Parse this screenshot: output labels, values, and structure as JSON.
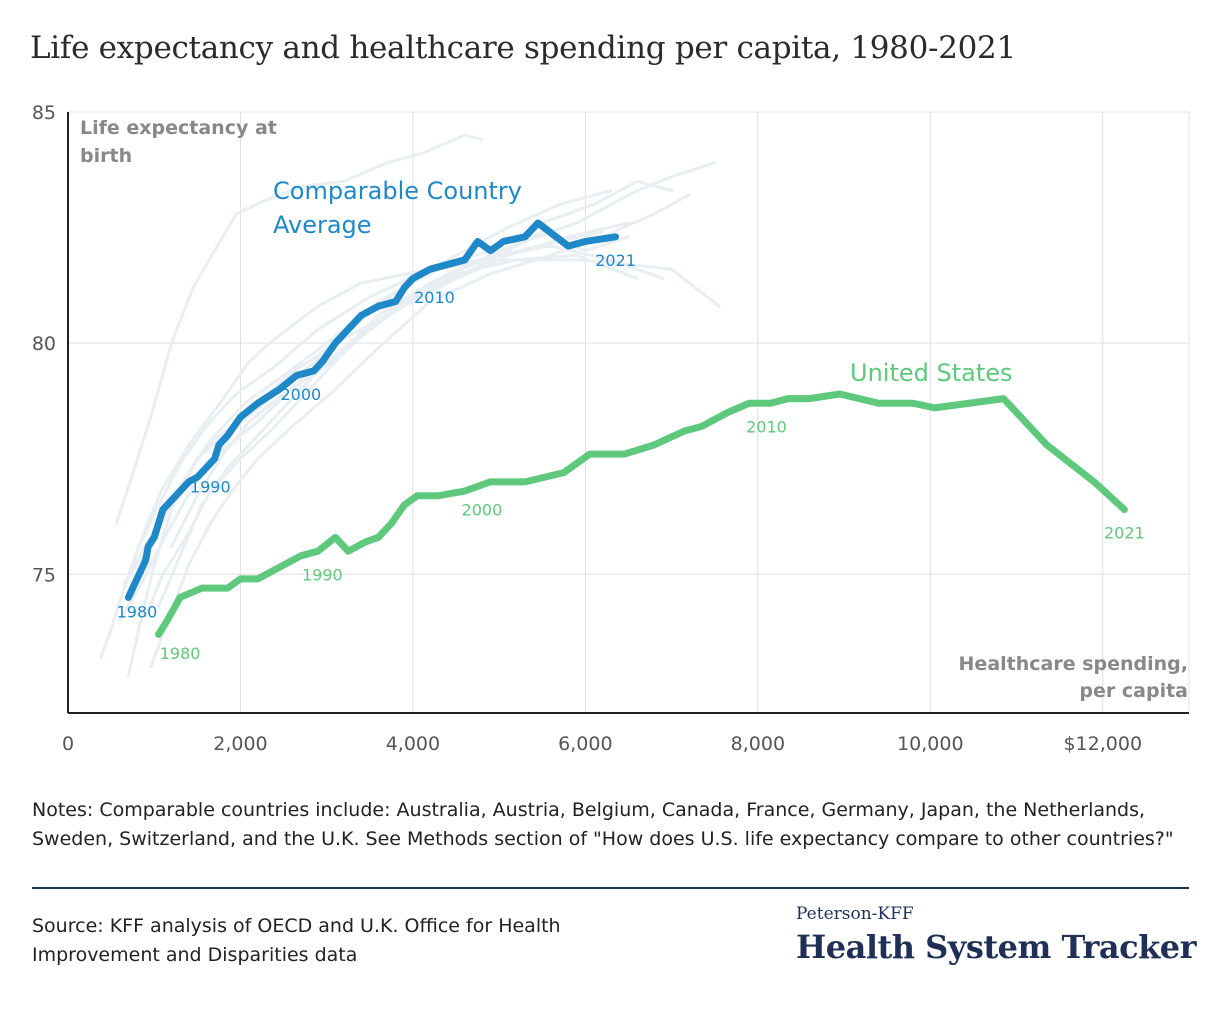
{
  "title": "Life expectancy and healthcare spending per capita, 1980-2021",
  "notes": "Notes: Comparable countries include: Australia, Austria, Belgium, Canada, France, Germany, Japan, the Netherlands, Sweden, Switzerland, and the U.K. See Methods section of \"How does U.S. life expectancy compare to other countries?\"",
  "source": "Source: KFF analysis of OECD and U.K. Office for Health Improvement and Disparities data",
  "brand": {
    "small": "Peterson-KFF",
    "big": "Health System Tracker"
  },
  "colors": {
    "comparable": "#1f88c8",
    "us": "#5ec97d",
    "background_countries": "#e8eef1",
    "axis": "#222222",
    "grid": "#e0e0e0",
    "label_gray": "#888888",
    "brand": "#1f2f55"
  },
  "chart_data": {
    "type": "line",
    "title": "Life expectancy and healthcare spending per capita, 1980-2021",
    "xlabel": "Healthcare spending, per capita",
    "ylabel": "Life expectancy at birth",
    "xlim": [
      0,
      13000
    ],
    "ylim": [
      72,
      85
    ],
    "x_ticks": [
      0,
      2000,
      4000,
      6000,
      8000,
      10000,
      12000
    ],
    "x_tick_labels": [
      "0",
      "2,000",
      "4,000",
      "6,000",
      "8,000",
      "10,000",
      "$12,000"
    ],
    "y_ticks": [
      75,
      80,
      85
    ],
    "y_tick_labels": [
      "75",
      "80",
      "85"
    ],
    "grid": true,
    "series": [
      {
        "name": "Comparable Country Average",
        "color": "#1f88c8",
        "points": [
          [
            700,
            74.5
          ],
          [
            900,
            75.3
          ],
          [
            930,
            75.6
          ],
          [
            1000,
            75.8
          ],
          [
            1100,
            76.4
          ],
          [
            1250,
            76.7
          ],
          [
            1400,
            77.0
          ],
          [
            1500,
            77.1
          ],
          [
            1600,
            77.3
          ],
          [
            1700,
            77.5
          ],
          [
            1750,
            77.8
          ],
          [
            1850,
            78.0
          ],
          [
            2000,
            78.4
          ],
          [
            2200,
            78.7
          ],
          [
            2450,
            79.0
          ],
          [
            2650,
            79.3
          ],
          [
            2850,
            79.4
          ],
          [
            2950,
            79.6
          ],
          [
            3100,
            80.0
          ],
          [
            3250,
            80.3
          ],
          [
            3400,
            80.6
          ],
          [
            3600,
            80.8
          ],
          [
            3800,
            80.9
          ],
          [
            3900,
            81.2
          ],
          [
            4000,
            81.4
          ],
          [
            4200,
            81.6
          ],
          [
            4400,
            81.7
          ],
          [
            4600,
            81.8
          ],
          [
            4750,
            82.2
          ],
          [
            4900,
            82.0
          ],
          [
            5050,
            82.2
          ],
          [
            5300,
            82.3
          ],
          [
            5450,
            82.6
          ],
          [
            5800,
            82.1
          ],
          [
            6000,
            82.2
          ],
          [
            6350,
            82.3
          ]
        ],
        "year_labels": [
          {
            "text": "1980",
            "x": 800,
            "y": 74.2
          },
          {
            "text": "1990",
            "x": 1650,
            "y": 76.9
          },
          {
            "text": "2000",
            "x": 2700,
            "y": 78.9
          },
          {
            "text": "2010",
            "x": 4250,
            "y": 81.0
          },
          {
            "text": "2021",
            "x": 6350,
            "y": 81.8
          }
        ]
      },
      {
        "name": "United States",
        "color": "#5ec97d",
        "points": [
          [
            1050,
            73.7
          ],
          [
            1150,
            74.0
          ],
          [
            1300,
            74.5
          ],
          [
            1550,
            74.7
          ],
          [
            1850,
            74.7
          ],
          [
            2000,
            74.9
          ],
          [
            2200,
            74.9
          ],
          [
            2400,
            75.1
          ],
          [
            2700,
            75.4
          ],
          [
            2900,
            75.5
          ],
          [
            3100,
            75.8
          ],
          [
            3250,
            75.5
          ],
          [
            3450,
            75.7
          ],
          [
            3600,
            75.8
          ],
          [
            3750,
            76.1
          ],
          [
            3900,
            76.5
          ],
          [
            4050,
            76.7
          ],
          [
            4300,
            76.7
          ],
          [
            4600,
            76.8
          ],
          [
            4900,
            77.0
          ],
          [
            5300,
            77.0
          ],
          [
            5750,
            77.2
          ],
          [
            6050,
            77.6
          ],
          [
            6450,
            77.6
          ],
          [
            6800,
            77.8
          ],
          [
            7150,
            78.1
          ],
          [
            7350,
            78.2
          ],
          [
            7650,
            78.5
          ],
          [
            7900,
            78.7
          ],
          [
            8150,
            78.7
          ],
          [
            8350,
            78.8
          ],
          [
            8600,
            78.8
          ],
          [
            8950,
            78.9
          ],
          [
            9400,
            78.7
          ],
          [
            9800,
            78.7
          ],
          [
            10050,
            78.6
          ],
          [
            10450,
            78.7
          ],
          [
            10850,
            78.8
          ],
          [
            11350,
            77.8
          ],
          [
            11900,
            77.0
          ],
          [
            12250,
            76.4
          ]
        ],
        "year_labels": [
          {
            "text": "1980",
            "x": 1300,
            "y": 73.3
          },
          {
            "text": "1990",
            "x": 2950,
            "y": 75.0
          },
          {
            "text": "2000",
            "x": 4800,
            "y": 76.4
          },
          {
            "text": "2010",
            "x": 8100,
            "y": 78.2
          },
          {
            "text": "2021",
            "x": 12250,
            "y": 75.9
          }
        ]
      }
    ],
    "background_series": [
      [
        [
          380,
          73.2
        ],
        [
          480,
          73.7
        ],
        [
          580,
          74.3
        ],
        [
          760,
          75.3
        ],
        [
          900,
          76.0
        ],
        [
          1080,
          76.8
        ],
        [
          1400,
          77.8
        ],
        [
          1800,
          78.8
        ],
        [
          2100,
          79.6
        ],
        [
          2400,
          80.1
        ],
        [
          2900,
          80.8
        ],
        [
          3400,
          81.3
        ],
        [
          4200,
          81.6
        ],
        [
          5000,
          81.8
        ],
        [
          6000,
          81.8
        ],
        [
          7000,
          81.6
        ],
        [
          7550,
          80.8
        ]
      ],
      [
        [
          700,
          72.8
        ],
        [
          820,
          73.8
        ],
        [
          1000,
          75.2
        ],
        [
          1200,
          76.4
        ],
        [
          1500,
          77.5
        ],
        [
          1750,
          78.0
        ],
        [
          2150,
          78.5
        ],
        [
          2600,
          79.2
        ],
        [
          3200,
          80.1
        ],
        [
          3800,
          80.7
        ],
        [
          4400,
          81.3
        ],
        [
          5100,
          81.9
        ],
        [
          5800,
          82.3
        ],
        [
          6500,
          82.6
        ]
      ],
      [
        [
          560,
          76.1
        ],
        [
          720,
          77.0
        ],
        [
          960,
          78.4
        ],
        [
          1200,
          80.0
        ],
        [
          1450,
          81.2
        ],
        [
          1700,
          82.0
        ],
        [
          1950,
          82.8
        ],
        [
          2300,
          83.1
        ],
        [
          2750,
          83.4
        ],
        [
          3200,
          83.5
        ],
        [
          3700,
          83.9
        ],
        [
          4100,
          84.1
        ],
        [
          4600,
          84.5
        ],
        [
          4800,
          84.4
        ]
      ],
      [
        [
          960,
          73.0
        ],
        [
          1180,
          74.1
        ],
        [
          1400,
          75.2
        ],
        [
          1650,
          76.1
        ],
        [
          1900,
          76.8
        ],
        [
          2200,
          77.5
        ],
        [
          2600,
          78.2
        ],
        [
          3100,
          79.0
        ],
        [
          3600,
          79.9
        ],
        [
          4200,
          80.9
        ],
        [
          4900,
          81.5
        ],
        [
          5600,
          81.9
        ],
        [
          6200,
          82.3
        ],
        [
          6800,
          82.8
        ],
        [
          7200,
          83.2
        ]
      ],
      [
        [
          900,
          74.1
        ],
        [
          1100,
          75.0
        ],
        [
          1400,
          75.9
        ],
        [
          1650,
          76.8
        ],
        [
          2000,
          77.5
        ],
        [
          2350,
          78.1
        ],
        [
          2800,
          79.0
        ],
        [
          3300,
          80.0
        ],
        [
          3800,
          80.7
        ],
        [
          4400,
          81.5
        ],
        [
          5000,
          81.9
        ],
        [
          5600,
          82.1
        ],
        [
          6300,
          81.8
        ],
        [
          6900,
          81.4
        ]
      ],
      [
        [
          700,
          75.0
        ],
        [
          950,
          75.8
        ],
        [
          1200,
          76.6
        ],
        [
          1500,
          77.5
        ],
        [
          1800,
          78.0
        ],
        [
          2150,
          78.6
        ],
        [
          2550,
          79.3
        ],
        [
          2950,
          79.8
        ],
        [
          3400,
          80.5
        ],
        [
          3950,
          81.3
        ],
        [
          4500,
          81.9
        ],
        [
          5100,
          82.5
        ],
        [
          5700,
          83.0
        ],
        [
          6300,
          83.3
        ]
      ],
      [
        [
          1050,
          74.3
        ],
        [
          1300,
          75.4
        ],
        [
          1550,
          76.5
        ],
        [
          1850,
          77.3
        ],
        [
          2150,
          77.9
        ],
        [
          2500,
          78.6
        ],
        [
          2950,
          79.5
        ],
        [
          3450,
          80.3
        ],
        [
          4000,
          81.0
        ],
        [
          4700,
          81.6
        ],
        [
          5300,
          82.2
        ],
        [
          5900,
          82.6
        ],
        [
          6600,
          83.3
        ],
        [
          7000,
          83.6
        ],
        [
          7500,
          83.9
        ]
      ],
      [
        [
          800,
          75.5
        ],
        [
          1000,
          76.3
        ],
        [
          1300,
          77.4
        ],
        [
          1600,
          78.2
        ],
        [
          1950,
          78.9
        ],
        [
          2400,
          79.5
        ],
        [
          2900,
          80.3
        ],
        [
          3500,
          81.0
        ],
        [
          4200,
          81.6
        ],
        [
          4900,
          82.0
        ],
        [
          5500,
          82.6
        ],
        [
          6100,
          83.0
        ],
        [
          6600,
          83.5
        ],
        [
          7000,
          83.3
        ]
      ],
      [
        [
          600,
          74.0
        ],
        [
          850,
          74.8
        ],
        [
          1150,
          75.9
        ],
        [
          1450,
          76.9
        ],
        [
          1800,
          77.7
        ],
        [
          2200,
          78.3
        ],
        [
          2700,
          79.2
        ],
        [
          3200,
          79.8
        ],
        [
          3800,
          80.8
        ],
        [
          4500,
          81.5
        ],
        [
          5200,
          81.8
        ],
        [
          5900,
          81.9
        ],
        [
          6600,
          81.4
        ]
      ],
      [
        [
          1200,
          75.6
        ],
        [
          1500,
          76.7
        ],
        [
          1800,
          77.6
        ],
        [
          2100,
          78.3
        ],
        [
          2500,
          78.9
        ],
        [
          3000,
          79.5
        ],
        [
          3600,
          80.6
        ],
        [
          4200,
          81.3
        ],
        [
          4900,
          81.9
        ],
        [
          5500,
          82.4
        ],
        [
          6000,
          82.0
        ],
        [
          6500,
          82.3
        ]
      ],
      [
        [
          650,
          74.8
        ],
        [
          950,
          75.6
        ],
        [
          1300,
          76.9
        ],
        [
          1650,
          77.9
        ],
        [
          2050,
          78.7
        ],
        [
          2500,
          79.3
        ],
        [
          3000,
          80.0
        ],
        [
          3600,
          80.9
        ],
        [
          4300,
          81.6
        ],
        [
          5000,
          81.9
        ],
        [
          5700,
          82.2
        ],
        [
          6200,
          82.4
        ]
      ]
    ]
  },
  "legend_labels": {
    "comparable": "Comparable Country Average",
    "us": "United States"
  },
  "axis_titles": {
    "y": "Life expectancy at birth",
    "x": "Healthcare spending, per capita"
  }
}
